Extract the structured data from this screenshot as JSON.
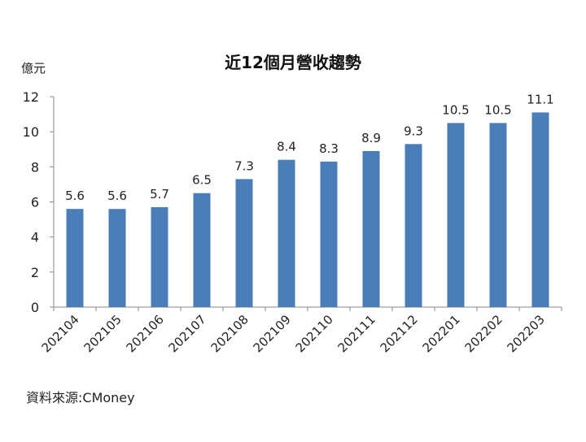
{
  "chart_data": {
    "type": "bar",
    "title": "近12個月營收趨勢",
    "ylabel": "億元",
    "xlabel": "",
    "categories": [
      "202104",
      "202105",
      "202106",
      "202107",
      "202108",
      "202109",
      "202110",
      "202111",
      "202112",
      "202201",
      "202202",
      "202203"
    ],
    "values": [
      5.6,
      5.6,
      5.7,
      6.5,
      7.3,
      8.4,
      8.3,
      8.9,
      9.3,
      10.5,
      10.5,
      11.1
    ],
    "value_labels": [
      "5.6",
      "5.6",
      "5.7",
      "6.5",
      "7.3",
      "8.4",
      "8.3",
      "8.9",
      "9.3",
      "10.5",
      "10.5",
      "11.1"
    ],
    "ylim": [
      0,
      12
    ],
    "yticks": [
      0,
      2,
      4,
      6,
      8,
      10,
      12
    ],
    "grid": false,
    "legend": "none",
    "bar_color": "#4A7EBB"
  },
  "source_text": "資料來源:CMoney"
}
